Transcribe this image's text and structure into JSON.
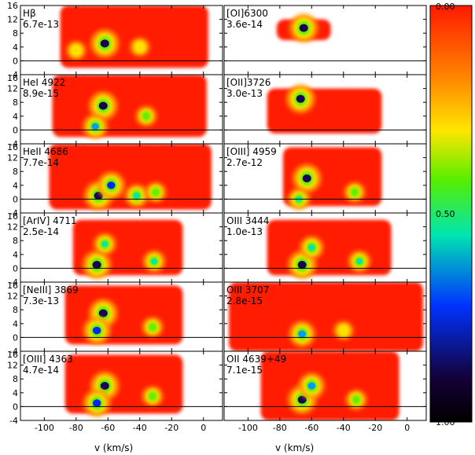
{
  "chart_data": {
    "type": "heatmap",
    "xlabel": "v (km/s)",
    "xlim": [
      -115,
      12
    ],
    "x_ticks": [
      "-100",
      "-80",
      "-60",
      "-40",
      "-20",
      "0"
    ],
    "ylim": [
      -4,
      16
    ],
    "y_ticks": [
      "-4",
      "0",
      "4",
      "8",
      "12",
      "16"
    ],
    "colorbar": {
      "ticks": [
        "0.00",
        "0.50",
        "1.00"
      ],
      "colors": [
        "#ff1a00",
        "#ff8a00",
        "#ffe600",
        "#55ee00",
        "#00e6b0",
        "#0033ff",
        "#140033",
        "#000000"
      ]
    },
    "panels": [
      {
        "line": "Hβ",
        "flux": "6.7e-13",
        "column": "left",
        "row": 1,
        "emission": {
          "x_range": [
            -90,
            3
          ],
          "y_range": [
            -2,
            16
          ]
        },
        "blobs": [
          {
            "x": -62,
            "y": 5,
            "level": 1.0
          },
          {
            "x": -80,
            "y": 3,
            "level": 0.3
          },
          {
            "x": -40,
            "y": 4,
            "level": 0.3
          }
        ]
      },
      {
        "line": "[OI]6300",
        "flux": "3.6e-14",
        "column": "right",
        "row": 1,
        "emission": {
          "x_range": [
            -82,
            -48
          ],
          "y_range": [
            6,
            12
          ]
        },
        "blobs": [
          {
            "x": -65,
            "y": 9.5,
            "level": 1.0
          }
        ]
      },
      {
        "line": "HeI 4922",
        "flux": "8.9e-15",
        "column": "left",
        "row": 2,
        "emission": {
          "x_range": [
            -95,
            2
          ],
          "y_range": [
            -2,
            16
          ]
        },
        "blobs": [
          {
            "x": -63,
            "y": 7,
            "level": 1.0
          },
          {
            "x": -68,
            "y": 1,
            "level": 0.7
          },
          {
            "x": -36,
            "y": 4,
            "level": 0.4
          }
        ]
      },
      {
        "line": "[OII]3726",
        "flux": "3.0e-13",
        "column": "right",
        "row": 2,
        "emission": {
          "x_range": [
            -88,
            -16
          ],
          "y_range": [
            -1,
            12
          ]
        },
        "blobs": [
          {
            "x": -67,
            "y": 9,
            "level": 1.0
          }
        ]
      },
      {
        "line": "HeII 4686",
        "flux": "7.7e-14",
        "column": "left",
        "row": 3,
        "emission": {
          "x_range": [
            -97,
            5
          ],
          "y_range": [
            -3,
            16
          ]
        },
        "blobs": [
          {
            "x": -66,
            "y": 1,
            "level": 1.0
          },
          {
            "x": -58,
            "y": 4,
            "level": 0.9
          },
          {
            "x": -42,
            "y": 1,
            "level": 0.6
          },
          {
            "x": -30,
            "y": 2,
            "level": 0.4
          }
        ]
      },
      {
        "line": "[OIII] 4959",
        "flux": "2.7e-12",
        "column": "right",
        "row": 3,
        "emission": {
          "x_range": [
            -78,
            -16
          ],
          "y_range": [
            -2,
            15
          ]
        },
        "blobs": [
          {
            "x": -63,
            "y": 6,
            "level": 1.0
          },
          {
            "x": -68,
            "y": 0,
            "level": 0.5
          },
          {
            "x": -33,
            "y": 2,
            "level": 0.4
          }
        ]
      },
      {
        "line": "[ArIV] 4711",
        "flux": "2.5e-14",
        "column": "left",
        "row": 4,
        "emission": {
          "x_range": [
            -82,
            -13
          ],
          "y_range": [
            -2,
            14
          ]
        },
        "blobs": [
          {
            "x": -67,
            "y": 1,
            "level": 1.0
          },
          {
            "x": -62,
            "y": 7,
            "level": 0.5
          },
          {
            "x": -31,
            "y": 2,
            "level": 0.5
          }
        ]
      },
      {
        "line": "OIII 3444",
        "flux": "1.0e-13",
        "column": "right",
        "row": 4,
        "emission": {
          "x_range": [
            -88,
            -10
          ],
          "y_range": [
            -2,
            14
          ]
        },
        "blobs": [
          {
            "x": -66,
            "y": 1,
            "level": 1.0
          },
          {
            "x": -60,
            "y": 6,
            "level": 0.6
          },
          {
            "x": -30,
            "y": 2,
            "level": 0.5
          }
        ]
      },
      {
        "line": "[NeIII] 3869",
        "flux": "7.3e-13",
        "column": "left",
        "row": 5,
        "emission": {
          "x_range": [
            -87,
            -13
          ],
          "y_range": [
            -2,
            15
          ]
        },
        "blobs": [
          {
            "x": -63,
            "y": 7,
            "level": 1.0
          },
          {
            "x": -67,
            "y": 2,
            "level": 0.9
          },
          {
            "x": -32,
            "y": 3,
            "level": 0.4
          }
        ]
      },
      {
        "line": "OIII 3707",
        "flux": "2.8e-15",
        "column": "right",
        "row": 5,
        "emission": {
          "x_range": [
            -112,
            10
          ],
          "y_range": [
            -4,
            16
          ]
        },
        "blobs": [
          {
            "x": -66,
            "y": 1,
            "level": 0.8
          },
          {
            "x": -40,
            "y": 2,
            "level": 0.3
          }
        ]
      },
      {
        "line": "[OIII] 4363",
        "flux": "4.7e-14",
        "column": "left",
        "row": 6,
        "emission": {
          "x_range": [
            -87,
            -13
          ],
          "y_range": [
            -2,
            15
          ]
        },
        "blobs": [
          {
            "x": -62,
            "y": 6,
            "level": 1.0
          },
          {
            "x": -67,
            "y": 1,
            "level": 0.9
          },
          {
            "x": -32,
            "y": 3,
            "level": 0.4
          }
        ]
      },
      {
        "line": "OII 4639+49",
        "flux": "7.1e-15",
        "column": "right",
        "row": 6,
        "emission": {
          "x_range": [
            -92,
            -5
          ],
          "y_range": [
            -4,
            16
          ]
        },
        "blobs": [
          {
            "x": -66,
            "y": 2,
            "level": 1.0
          },
          {
            "x": -60,
            "y": 6,
            "level": 0.8
          },
          {
            "x": -32,
            "y": 2,
            "level": 0.4
          }
        ]
      }
    ]
  }
}
